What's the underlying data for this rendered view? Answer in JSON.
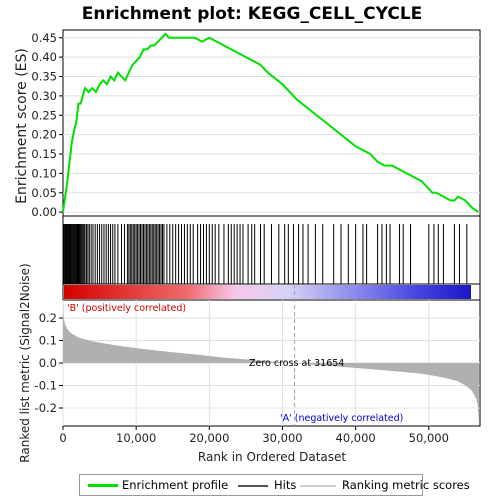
{
  "title": "Enrichment plot: KEGG_CELL_CYCLE",
  "chart_data": [
    {
      "type": "line",
      "panel": "enrichment-profile",
      "ylabel": "Enrichment score (ES)",
      "ylim": [
        -0.01,
        0.47
      ],
      "xlim": [
        0,
        57000
      ],
      "yticks": [
        0.0,
        0.05,
        0.1,
        0.15,
        0.2,
        0.25,
        0.3,
        0.35,
        0.4,
        0.45
      ],
      "ytick_labels": [
        "0.00",
        "0.05",
        "0.10",
        "0.15",
        "0.20",
        "0.25",
        "0.30",
        "0.35",
        "0.40",
        "0.45"
      ],
      "grid": true,
      "series": [
        {
          "name": "Enrichment profile",
          "color": "#00e000",
          "x": [
            0,
            300,
            600,
            900,
            1200,
            1500,
            1800,
            2100,
            2400,
            2700,
            3000,
            3500,
            4000,
            4500,
            5000,
            5500,
            6000,
            6500,
            7000,
            7500,
            8000,
            8500,
            9000,
            9500,
            10000,
            10500,
            11000,
            11500,
            12000,
            12500,
            13000,
            13500,
            14000,
            14500,
            15000,
            16000,
            17000,
            18000,
            19000,
            20000,
            21000,
            22000,
            23000,
            24000,
            25000,
            26000,
            27000,
            28000,
            30000,
            32000,
            34000,
            36000,
            38000,
            40000,
            41000,
            42000,
            43000,
            44000,
            44500,
            45000,
            46000,
            47000,
            48000,
            49000,
            50000,
            50500,
            51000,
            52000,
            53000,
            53500,
            54000,
            55000,
            55500,
            56000,
            56800
          ],
          "values": [
            0.0,
            0.04,
            0.08,
            0.13,
            0.18,
            0.21,
            0.23,
            0.28,
            0.28,
            0.3,
            0.32,
            0.31,
            0.32,
            0.31,
            0.33,
            0.34,
            0.33,
            0.35,
            0.34,
            0.36,
            0.35,
            0.34,
            0.36,
            0.38,
            0.39,
            0.4,
            0.42,
            0.42,
            0.43,
            0.43,
            0.44,
            0.45,
            0.46,
            0.45,
            0.45,
            0.45,
            0.45,
            0.45,
            0.44,
            0.45,
            0.44,
            0.43,
            0.42,
            0.41,
            0.4,
            0.39,
            0.38,
            0.36,
            0.33,
            0.29,
            0.26,
            0.23,
            0.2,
            0.17,
            0.16,
            0.15,
            0.13,
            0.12,
            0.12,
            0.12,
            0.11,
            0.1,
            0.09,
            0.08,
            0.06,
            0.05,
            0.05,
            0.04,
            0.03,
            0.03,
            0.04,
            0.03,
            0.02,
            0.01,
            0.0
          ]
        }
      ]
    },
    {
      "type": "scatter",
      "panel": "hits",
      "series": [
        {
          "name": "Hits",
          "color": "#000000",
          "x": [
            100,
            220,
            350,
            480,
            600,
            720,
            830,
            950,
            1080,
            1200,
            1320,
            1450,
            1560,
            1680,
            1800,
            1920,
            2050,
            2180,
            2300,
            2420,
            2560,
            2700,
            2850,
            3000,
            3200,
            3400,
            3600,
            3850,
            4100,
            4400,
            4700,
            5000,
            5300,
            5600,
            5900,
            6200,
            6500,
            6800,
            7100,
            7500,
            8000,
            8400,
            8800,
            9000,
            9200,
            9400,
            9600,
            9800,
            10000,
            10200,
            10400,
            10600,
            10800,
            11000,
            11200,
            11400,
            11600,
            11800,
            12000,
            12200,
            12400,
            12600,
            12800,
            13000,
            13200,
            13400,
            13600,
            13800,
            14200,
            14600,
            15000,
            15400,
            15800,
            16200,
            16600,
            17000,
            17400,
            17800,
            18400,
            18800,
            19200,
            19600,
            20000,
            20400,
            20800,
            21300,
            22000,
            22600,
            23000,
            23400,
            23800,
            24200,
            24600,
            25300,
            25800,
            26200,
            27000,
            27500,
            28500,
            29500,
            30300,
            30800,
            31500,
            32200,
            32800,
            33500,
            34500,
            35500,
            37000,
            38000,
            39000,
            40000,
            41000,
            41500,
            43000,
            43600,
            44200,
            44700,
            46000,
            46500,
            47500,
            50000,
            50700,
            51300,
            52000,
            53500,
            54200,
            55200
          ]
        }
      ]
    },
    {
      "type": "area",
      "panel": "ranked-list-metric",
      "ylabel": "Ranked list metric (Signal2Noise)",
      "xlabel": "Rank in Ordered Dataset",
      "ylim": [
        -0.28,
        0.28
      ],
      "xlim": [
        0,
        57000
      ],
      "yticks": [
        -0.2,
        -0.1,
        0.0,
        0.1,
        0.2
      ],
      "ytick_labels": [
        "-0.2",
        "-0.1",
        "0.0",
        "0.1",
        "0.2"
      ],
      "xticks": [
        0,
        10000,
        20000,
        30000,
        40000,
        50000
      ],
      "xtick_labels": [
        "0",
        "10,000",
        "20,000",
        "30,000",
        "40,000",
        "50,000"
      ],
      "grid": true,
      "series": [
        {
          "name": "Ranking metric scores",
          "color": "#b0b0b0",
          "x": [
            0,
            100,
            300,
            600,
            1000,
            1500,
            2000,
            3000,
            4000,
            6000,
            8000,
            10000,
            12000,
            15000,
            18000,
            20000,
            22000,
            25000,
            28000,
            30000,
            31654,
            34000,
            38000,
            42000,
            46000,
            49000,
            51000,
            53000,
            54000,
            55000,
            55800,
            56200,
            56500,
            56700,
            56850
          ],
          "values": [
            0.28,
            0.2,
            0.17,
            0.15,
            0.135,
            0.125,
            0.115,
            0.105,
            0.097,
            0.085,
            0.075,
            0.066,
            0.058,
            0.048,
            0.038,
            0.031,
            0.024,
            0.016,
            0.008,
            0.003,
            0.0,
            -0.007,
            -0.017,
            -0.027,
            -0.038,
            -0.048,
            -0.058,
            -0.072,
            -0.082,
            -0.1,
            -0.12,
            -0.14,
            -0.16,
            -0.19,
            -0.27
          ]
        }
      ],
      "annotations": {
        "positive": "'B' (positively correlated)",
        "negative": "'A' (negatively correlated)",
        "zero_cross": "Zero cross at 31654",
        "zero_cross_x": 31654
      }
    }
  ],
  "colors": {
    "enrichment": "#00e000",
    "hits": "#000000",
    "metric_fill": "#b0b0b0",
    "positive_text": "#cc0000",
    "negative_text": "#0000cc",
    "zero_line": "#a0a0c0",
    "heat_gradient": [
      "#d70000",
      "#f07070",
      "#f5b8e8",
      "#c8c8f8",
      "#6d6df0",
      "#2020d8"
    ]
  },
  "legend": {
    "items": [
      {
        "label": "Enrichment profile",
        "color": "#00e000"
      },
      {
        "label": "Hits",
        "color": "#000000"
      },
      {
        "label": "Ranking metric scores",
        "color": "#c0c0c0"
      }
    ]
  }
}
